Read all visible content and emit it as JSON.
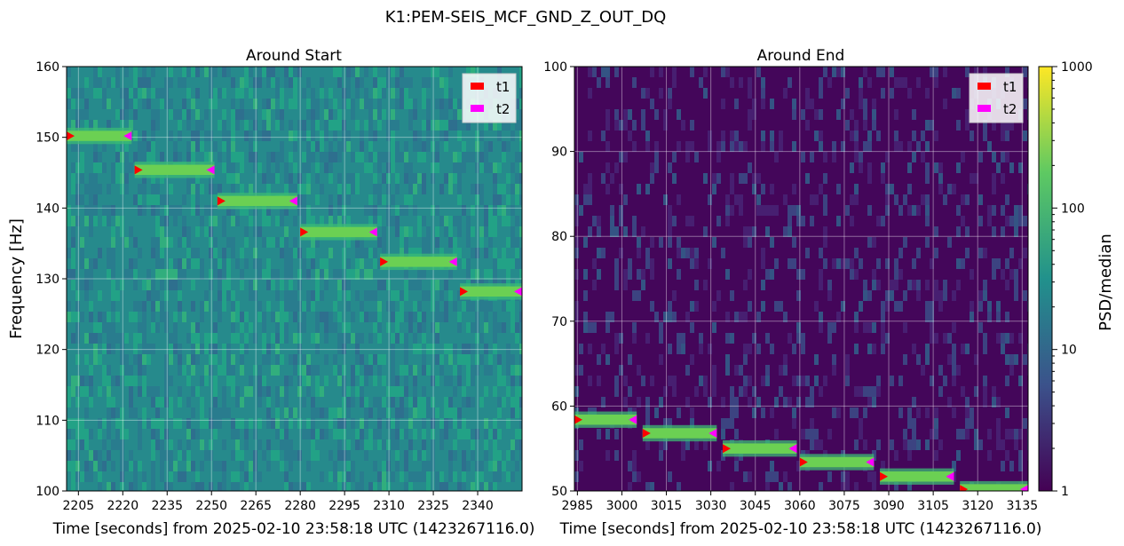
{
  "figure": {
    "suptitle": "K1:PEM-SEIS_MCF_GND_Z_OUT_DQ",
    "ylabel": "Frequency [Hz]",
    "colorbar": {
      "label": "PSD/median",
      "scale": "log",
      "ticks": [
        "1",
        "10",
        "100",
        "1000"
      ],
      "colormap": [
        "#440154",
        "#3b528b",
        "#21918c",
        "#5ec962",
        "#fde725"
      ]
    },
    "marker_colors": {
      "t1": "#ff0000",
      "t2": "#ff00ff"
    }
  },
  "chart_data": [
    {
      "type": "heatmap",
      "title": "Around Start",
      "xlabel": "Time [seconds] from 2025-02-10 23:58:18 UTC (1423267116.0)",
      "xlim": [
        2201,
        2355
      ],
      "ylim": [
        100,
        160
      ],
      "xticks": [
        2205,
        2220,
        2235,
        2250,
        2265,
        2280,
        2295,
        2310,
        2325,
        2340
      ],
      "yticks": [
        100,
        110,
        120,
        130,
        140,
        150,
        160
      ],
      "grid": true,
      "legend": {
        "placement": "top-right",
        "entries": [
          "t1",
          "t2"
        ]
      },
      "background_level": "#268a8c",
      "segments": [
        {
          "t1": 2201,
          "t2": 2223,
          "freq": 150.2
        },
        {
          "t1": 2224,
          "t2": 2251,
          "freq": 145.4
        },
        {
          "t1": 2252,
          "t2": 2279,
          "freq": 141.0
        },
        {
          "t1": 2280,
          "t2": 2306,
          "freq": 136.6
        },
        {
          "t1": 2307,
          "t2": 2333,
          "freq": 132.4
        },
        {
          "t1": 2334,
          "t2": 2355,
          "freq": 128.2
        }
      ]
    },
    {
      "type": "heatmap",
      "title": "Around End",
      "xlabel": "Time [seconds] from 2025-02-10 23:58:18 UTC (1423267116.0)",
      "xlim": [
        2984,
        3137
      ],
      "ylim": [
        50,
        100
      ],
      "xticks": [
        2985,
        3000,
        3015,
        3030,
        3045,
        3060,
        3075,
        3090,
        3105,
        3120,
        3135
      ],
      "yticks": [
        50,
        60,
        70,
        80,
        90,
        100
      ],
      "grid": true,
      "legend": {
        "placement": "top-right",
        "entries": [
          "t1",
          "t2"
        ]
      },
      "background_level": "#44065a",
      "segments": [
        {
          "t1": 2984,
          "t2": 3005,
          "freq": 58.4
        },
        {
          "t1": 3007,
          "t2": 3032,
          "freq": 56.8
        },
        {
          "t1": 3034,
          "t2": 3059,
          "freq": 55.0
        },
        {
          "t1": 3060,
          "t2": 3085,
          "freq": 53.4
        },
        {
          "t1": 3087,
          "t2": 3112,
          "freq": 51.7
        },
        {
          "t1": 3114,
          "t2": 3137,
          "freq": 50.2
        }
      ]
    }
  ]
}
